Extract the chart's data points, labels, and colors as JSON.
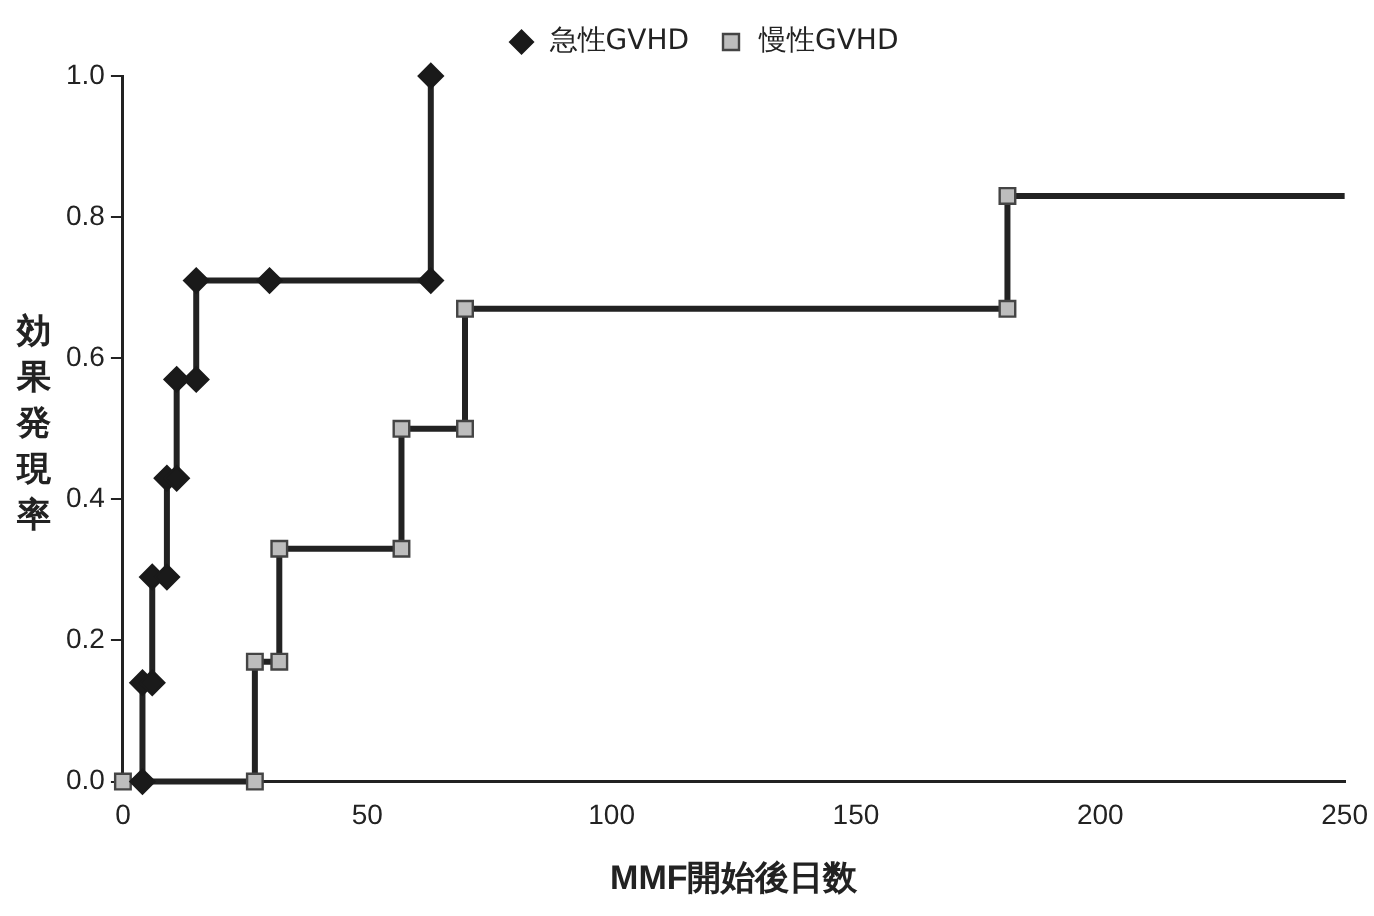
{
  "chart_data": {
    "type": "line",
    "xlabel": "MMF開始後日数",
    "ylabel": "効果発現率",
    "xlim": [
      0,
      250
    ],
    "xticks": [
      0,
      50,
      100,
      150,
      200,
      250
    ],
    "ylim": [
      0,
      1
    ],
    "yticks": [
      {
        "value": 0,
        "label": "0.0"
      },
      {
        "value": 0.2,
        "label": "0.2"
      },
      {
        "value": 0.4,
        "label": "0.4"
      },
      {
        "value": 0.6,
        "label": "0.6"
      },
      {
        "value": 0.8,
        "label": "0.8"
      },
      {
        "value": 1,
        "label": "1.0"
      }
    ],
    "grid": false,
    "legend": "top",
    "line_style": "solid",
    "series": [
      {
        "name": "急性GVHD",
        "color": "#1a1a1a",
        "marker": "diamond",
        "x": [
          4,
          4,
          6,
          6,
          9,
          9,
          11,
          11,
          15,
          15,
          30,
          63,
          63
        ],
        "values": [
          0,
          0.14,
          0.14,
          0.29,
          0.29,
          0.43,
          0.43,
          0.57,
          0.57,
          0.71,
          0.71,
          0.71,
          1.0
        ]
      },
      {
        "name": "慢性GVHD",
        "color": "#bdbdbd",
        "marker": "square",
        "x": [
          0,
          27,
          27,
          32,
          32,
          57,
          57,
          70,
          70,
          181,
          181,
          250
        ],
        "values": [
          0,
          0,
          0.17,
          0.17,
          0.33,
          0.33,
          0.5,
          0.5,
          0.67,
          0.67,
          0.83,
          0.83
        ]
      }
    ]
  }
}
